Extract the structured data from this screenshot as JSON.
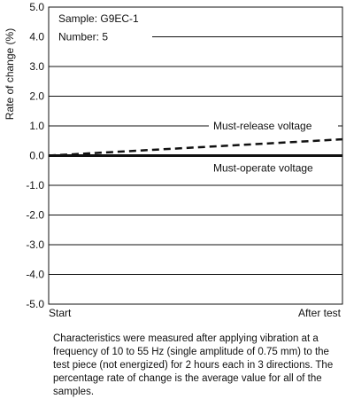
{
  "chart_data": {
    "type": "line",
    "title": "",
    "xlabel": "",
    "ylabel": "Rate of change (%)",
    "x_categories": [
      "Start",
      "After test"
    ],
    "xlim": [
      0,
      1
    ],
    "ylim": [
      -5.0,
      5.0
    ],
    "y_ticks": [
      "-5.0",
      "-4.0",
      "-3.0",
      "-2.0",
      "-1.0",
      "0.0",
      "1.0",
      "2.0",
      "3.0",
      "4.0",
      "5.0"
    ],
    "grid": "horizontal",
    "series": [
      {
        "name": "Must-release voltage",
        "style": "dashed",
        "x": [
          0,
          1
        ],
        "y": [
          0.0,
          0.55
        ]
      },
      {
        "name": "Must-operate voltage",
        "style": "solid-thick",
        "x": [
          0,
          1
        ],
        "y": [
          0.0,
          0.0
        ]
      }
    ],
    "annotations": {
      "sample": "Sample: G9EC-1",
      "number": "Number: 5"
    }
  },
  "caption": "Characteristics were measured after applying vibration at a frequency of 10 to 55 Hz (single amplitude of 0.75 mm) to the test piece (not energized) for 2 hours each in 3 directions. The percentage rate of change is the average value for all of the samples.",
  "colors": {
    "line": "#111111",
    "grid": "#111111",
    "background": "#ffffff"
  }
}
